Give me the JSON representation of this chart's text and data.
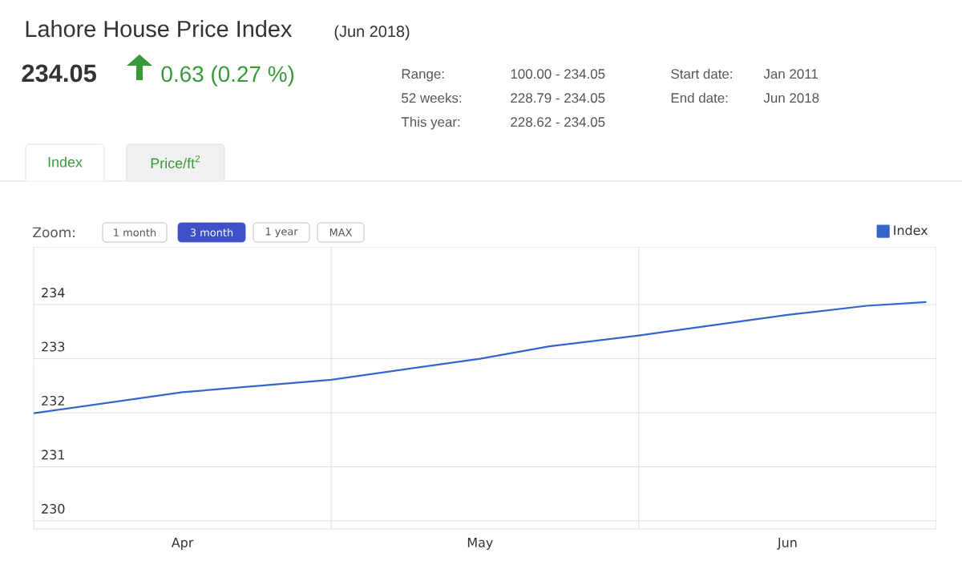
{
  "chart_data": {
    "type": "line",
    "title": "Lahore House Price Index",
    "subtitle": "(Jun 2018)",
    "annotations": [
      "234.05",
      "0.63 (0.27 %)",
      "Range:",
      "100.00 - 234.05",
      "52 weeks:",
      "228.79 - 234.05",
      "This year:",
      "228.62 - 234.05",
      "Start date:",
      "Jan 2011",
      "End date:",
      "Jun 2018",
      "Index",
      "Price/ft$^{2}$",
      "Zoom:",
      "1 month",
      "3 month",
      "1 year",
      "MAX"
    ],
    "x": [
      "2018-04-01",
      "2018-04-16",
      "2018-05-01",
      "2018-05-16",
      "2018-05-23",
      "2018-06-01",
      "2018-06-16",
      "2018-06-24",
      "2018-06-30"
    ],
    "series": [
      {
        "name": "Index",
        "color": "#3366cc",
        "values": [
          231.99,
          232.38,
          232.61,
          233.0,
          233.23,
          233.43,
          233.81,
          233.98,
          234.05
        ]
      }
    ],
    "xlim": [
      "2018-04-01",
      "2018-07-01"
    ],
    "xticks": [
      {
        "value": "2018-04-16",
        "label": "Apr"
      },
      {
        "value": "2018-05-01",
        "label": null
      },
      {
        "value": "2018-05-16",
        "label": "May"
      },
      {
        "value": "2018-06-01",
        "label": null
      },
      {
        "value": "2018-06-16",
        "label": "Jun"
      }
    ],
    "ylim": [
      229.85,
      235.07
    ],
    "yticks": [
      230,
      231,
      232,
      233,
      234
    ],
    "grid": true,
    "legend": "top right",
    "marker": "none",
    "line_style": "solid"
  }
}
